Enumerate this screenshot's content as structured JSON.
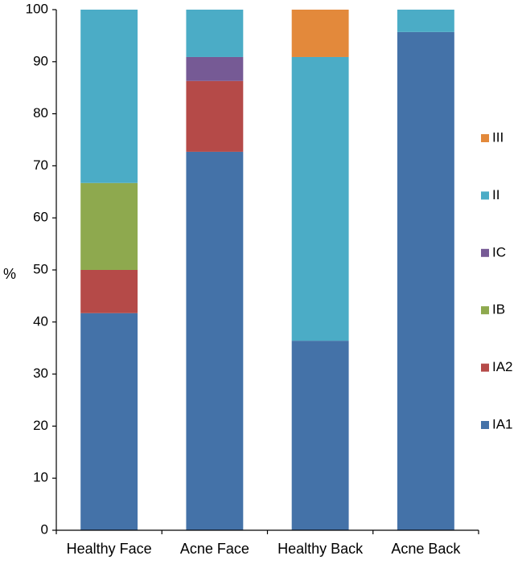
{
  "chart_data": {
    "type": "bar",
    "stacked": true,
    "ylabel": "%",
    "xlabel": "",
    "ylim": [
      0,
      100
    ],
    "yticks": [
      0,
      10,
      20,
      30,
      40,
      50,
      60,
      70,
      80,
      90,
      100
    ],
    "grid": false,
    "legend_position": "right",
    "categories": [
      "Healthy Face",
      "Acne Face",
      "Healthy Back",
      "Acne Back"
    ],
    "series": [
      {
        "name": "IA1",
        "color": "#4472a8",
        "values": [
          41.7,
          72.7,
          36.4,
          95.7
        ]
      },
      {
        "name": "IA2",
        "color": "#b54a48",
        "values": [
          8.3,
          13.6,
          0,
          0
        ]
      },
      {
        "name": "IB",
        "color": "#8ea94e",
        "values": [
          16.7,
          0,
          0,
          0
        ]
      },
      {
        "name": "IC",
        "color": "#765a95",
        "values": [
          0,
          4.6,
          0,
          0
        ]
      },
      {
        "name": "II",
        "color": "#4bacc6",
        "values": [
          33.3,
          9.1,
          54.5,
          4.3
        ]
      },
      {
        "name": "III",
        "color": "#e3893b",
        "values": [
          0,
          0,
          9.1,
          0
        ]
      }
    ],
    "legend_order": [
      "III",
      "II",
      "IC",
      "IB",
      "IA2",
      "IA1"
    ]
  }
}
